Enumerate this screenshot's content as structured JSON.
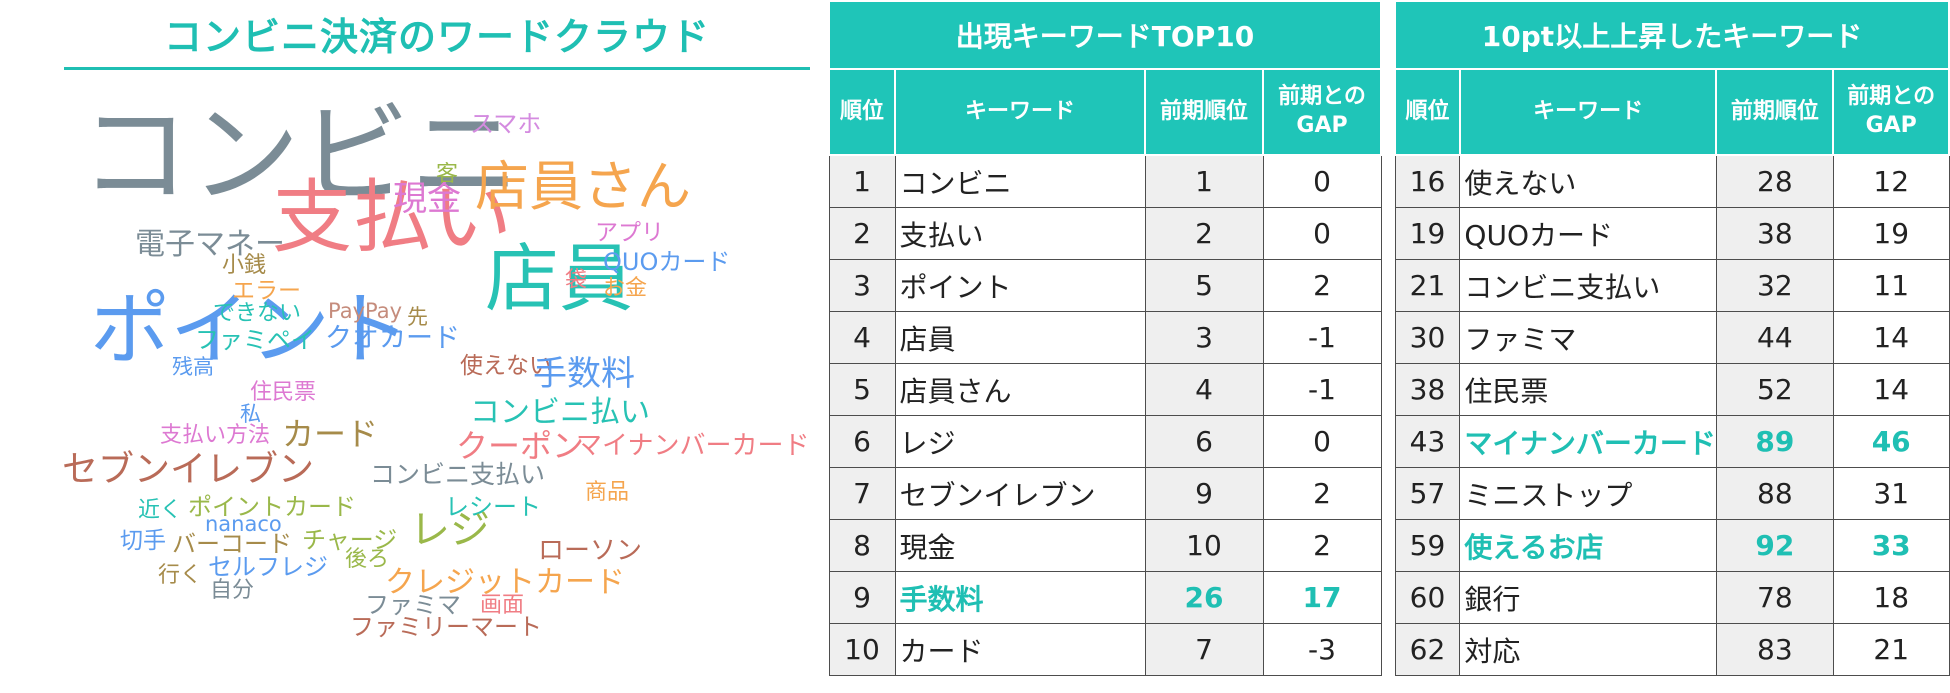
{
  "cloud": {
    "title": "コンビニ決済のワードクラウド",
    "words": [
      {
        "text": "コンビニ",
        "color": "#7b8c96"
      },
      {
        "text": "支払い",
        "color": "#f07d84"
      },
      {
        "text": "ポイント",
        "color": "#5b9bef"
      },
      {
        "text": "店員",
        "color": "#27c2b4"
      },
      {
        "text": "店員さん",
        "color": "#f5a54e"
      },
      {
        "text": "現金",
        "color": "#dd79d2"
      },
      {
        "text": "スマホ",
        "color": "#d48be0"
      },
      {
        "text": "客",
        "color": "#9ab84a"
      },
      {
        "text": "電子マネー",
        "color": "#7b8c96"
      },
      {
        "text": "アプリ",
        "color": "#dd79d2"
      },
      {
        "text": "QUOカード",
        "color": "#5b9bef"
      },
      {
        "text": "袋",
        "color": "#f07d84"
      },
      {
        "text": "お金",
        "color": "#f5a54e"
      },
      {
        "text": "小銭",
        "color": "#a68b4a"
      },
      {
        "text": "エラー",
        "color": "#f5a54e"
      },
      {
        "text": "できない",
        "color": "#27c2b4"
      },
      {
        "text": "PayPay",
        "color": "#c58c7c"
      },
      {
        "text": "先",
        "color": "#a68b4a"
      },
      {
        "text": "ファミペイ",
        "color": "#27c2b4"
      },
      {
        "text": "クオカード",
        "color": "#5b9bef"
      },
      {
        "text": "残高",
        "color": "#5b9bef"
      },
      {
        "text": "使えない",
        "color": "#b96b58"
      },
      {
        "text": "手数料",
        "color": "#5b9bef"
      },
      {
        "text": "住民票",
        "color": "#dd79d2"
      },
      {
        "text": "私",
        "color": "#5b9bef"
      },
      {
        "text": "コンビニ払い",
        "color": "#27c2b4"
      },
      {
        "text": "支払い方法",
        "color": "#dd79d2"
      },
      {
        "text": "カード",
        "color": "#a68b4a"
      },
      {
        "text": "クーポン",
        "color": "#f07d84"
      },
      {
        "text": "マイナンバーカード",
        "color": "#f07d84"
      },
      {
        "text": "セブンイレブン",
        "color": "#b96b58"
      },
      {
        "text": "コンビニ支払い",
        "color": "#7b8c96"
      },
      {
        "text": "商品",
        "color": "#f5a54e"
      },
      {
        "text": "近く",
        "color": "#27c2b4"
      },
      {
        "text": "ポイントカード",
        "color": "#9ab84a"
      },
      {
        "text": "レシート",
        "color": "#27c2b4"
      },
      {
        "text": "nanaco",
        "color": "#5b9bef"
      },
      {
        "text": "切手",
        "color": "#5b9bef"
      },
      {
        "text": "バーコード",
        "color": "#a68b4a"
      },
      {
        "text": "チャージ",
        "color": "#9ab84a"
      },
      {
        "text": "レジ",
        "color": "#9ab84a"
      },
      {
        "text": "ローソン",
        "color": "#b96b58"
      },
      {
        "text": "後ろ",
        "color": "#9ab84a"
      },
      {
        "text": "行く",
        "color": "#a68b4a"
      },
      {
        "text": "セルフレジ",
        "color": "#5b9bef"
      },
      {
        "text": "クレジットカード",
        "color": "#f5a54e"
      },
      {
        "text": "自分",
        "color": "#7b8c96"
      },
      {
        "text": "ファミマ",
        "color": "#7b8c96"
      },
      {
        "text": "画面",
        "color": "#f07d84"
      },
      {
        "text": "ファミリーマート",
        "color": "#b96b58"
      }
    ]
  },
  "table1": {
    "title": "出現キーワードTOP10",
    "headers": {
      "rank": "順位",
      "keyword": "キーワード",
      "prev_rank": "前期順位",
      "gap_line1": "前期との",
      "gap_line2": "GAP"
    },
    "rows": [
      {
        "rank": "1",
        "keyword": "コンビニ",
        "prev": "1",
        "gap": "0",
        "highlight": false
      },
      {
        "rank": "2",
        "keyword": "支払い",
        "prev": "2",
        "gap": "0",
        "highlight": false
      },
      {
        "rank": "3",
        "keyword": "ポイント",
        "prev": "5",
        "gap": "2",
        "highlight": false
      },
      {
        "rank": "4",
        "keyword": "店員",
        "prev": "3",
        "gap": "-1",
        "highlight": false
      },
      {
        "rank": "5",
        "keyword": "店員さん",
        "prev": "4",
        "gap": "-1",
        "highlight": false
      },
      {
        "rank": "6",
        "keyword": "レジ",
        "prev": "6",
        "gap": "0",
        "highlight": false
      },
      {
        "rank": "7",
        "keyword": "セブンイレブン",
        "prev": "9",
        "gap": "2",
        "highlight": false
      },
      {
        "rank": "8",
        "keyword": "現金",
        "prev": "10",
        "gap": "2",
        "highlight": false
      },
      {
        "rank": "9",
        "keyword": "手数料",
        "prev": "26",
        "gap": "17",
        "highlight": true
      },
      {
        "rank": "10",
        "keyword": "カード",
        "prev": "7",
        "gap": "-3",
        "highlight": false
      }
    ]
  },
  "table2": {
    "title": "10pt以上上昇したキーワード",
    "headers": {
      "rank": "順位",
      "keyword": "キーワード",
      "prev_rank": "前期順位",
      "gap_line1": "前期との",
      "gap_line2": "GAP"
    },
    "rows": [
      {
        "rank": "16",
        "keyword": "使えない",
        "prev": "28",
        "gap": "12",
        "highlight": false
      },
      {
        "rank": "19",
        "keyword": "QUOカード",
        "prev": "38",
        "gap": "19",
        "highlight": false
      },
      {
        "rank": "21",
        "keyword": "コンビニ支払い",
        "prev": "32",
        "gap": "11",
        "highlight": false
      },
      {
        "rank": "30",
        "keyword": "ファミマ",
        "prev": "44",
        "gap": "14",
        "highlight": false
      },
      {
        "rank": "38",
        "keyword": "住民票",
        "prev": "52",
        "gap": "14",
        "highlight": false
      },
      {
        "rank": "43",
        "keyword": "マイナンバーカード",
        "prev": "89",
        "gap": "46",
        "highlight": true
      },
      {
        "rank": "57",
        "keyword": "ミニストップ",
        "prev": "88",
        "gap": "31",
        "highlight": false
      },
      {
        "rank": "59",
        "keyword": "使えるお店",
        "prev": "92",
        "gap": "33",
        "highlight": true
      },
      {
        "rank": "60",
        "keyword": "銀行",
        "prev": "78",
        "gap": "18",
        "highlight": false
      },
      {
        "rank": "62",
        "keyword": "対応",
        "prev": "83",
        "gap": "21",
        "highlight": false
      }
    ]
  }
}
